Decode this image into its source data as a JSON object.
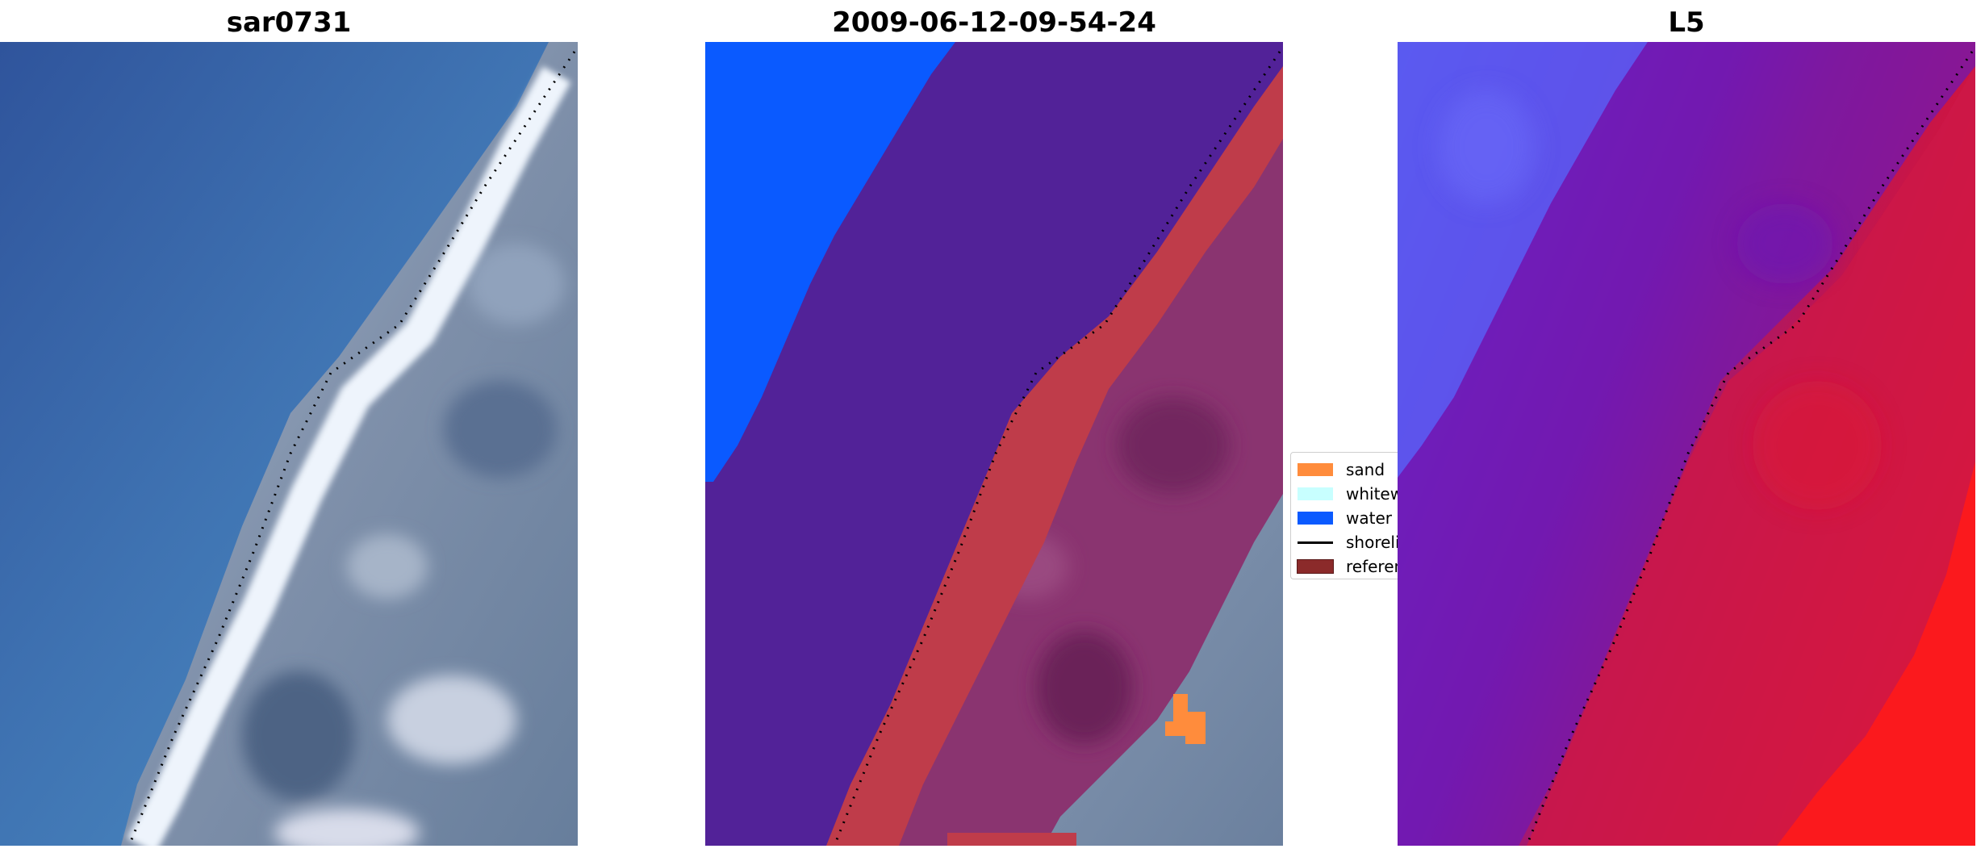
{
  "panels": [
    {
      "title": "sar0731",
      "kind": "rgb"
    },
    {
      "title": "2009-06-12-09-54-24",
      "kind": "classification"
    },
    {
      "title": "L5",
      "kind": "probability"
    }
  ],
  "legend": {
    "items": [
      {
        "label": "sand",
        "color": "#ff8c3c",
        "type": "patch"
      },
      {
        "label": "whitewater",
        "color": "#c8ffff",
        "type": "patch"
      },
      {
        "label": "water",
        "color": "#0a5aff",
        "type": "patch"
      },
      {
        "label": "shoreline",
        "color": "#000000",
        "type": "line"
      },
      {
        "label": "reference",
        "color": "#8b2a2a",
        "type": "patch"
      }
    ]
  },
  "colors": {
    "sea_dark": "#3a64a4",
    "sea_light": "#4a8ac2",
    "surf": "#e8f0fa",
    "land": "#7d8ea8",
    "class_water": "#0a5aff",
    "class_whitewater": "#522298",
    "class_sand": "#ff8c3c",
    "class_reference_band": "#bf3c4a",
    "class_land_overlay": "#8a3470",
    "prob_water": "#5a5af0",
    "prob_mid": "#7a1cb0",
    "prob_land": "#d2143c",
    "prob_high": "#ff1a1a"
  }
}
